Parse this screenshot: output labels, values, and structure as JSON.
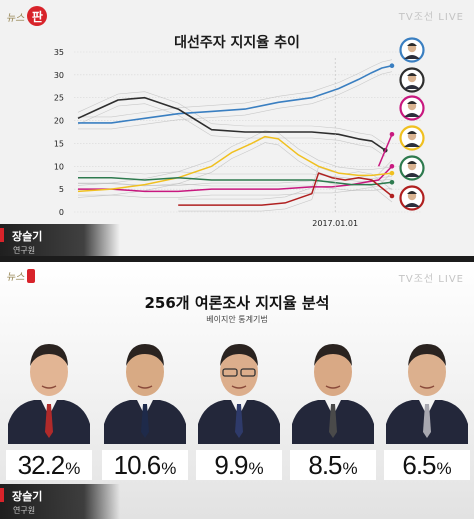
{
  "top": {
    "logo_text": "뉴스",
    "logo_badge": "판",
    "watermark": "TV조선 LIVE",
    "presenter": {
      "name": "장슬기",
      "role": "연구원"
    }
  },
  "bottom": {
    "logo_text": "뉴스",
    "watermark": "TV조선 LIVE",
    "presenter": {
      "name": "장슬기",
      "role": "연구원"
    }
  },
  "colors": {
    "moon": "#3a7fc1",
    "ahn_hee": "#2e2e2e",
    "lee_jm": "#c8187f",
    "ahn_cs": "#f0c020",
    "hwang": "#2e7a4e",
    "yu": "#b02020",
    "band": "#b8b8b8"
  },
  "chart_data": [
    {
      "type": "line",
      "title": "대선주자 지지율 추이",
      "x_tick_label": "2017.01.01",
      "ylim": [
        0,
        35
      ],
      "yticks": [
        0,
        5,
        10,
        15,
        20,
        25,
        30,
        35
      ],
      "grid": true,
      "x_range": [
        0,
        100
      ],
      "x_tick_value": 77,
      "series": [
        {
          "key": "moon",
          "x": [
            0,
            10,
            20,
            30,
            40,
            50,
            60,
            70,
            78,
            84,
            88,
            91,
            94
          ],
          "y": [
            19.5,
            19.5,
            20.5,
            21.5,
            22,
            22.5,
            24,
            25,
            27,
            29,
            30.5,
            31.5,
            32
          ]
        },
        {
          "key": "ahn_hee",
          "x": [
            0,
            6,
            12,
            20,
            30,
            40,
            50,
            60,
            70,
            78,
            84,
            88,
            92
          ],
          "y": [
            20.5,
            22.5,
            24.5,
            25,
            22.5,
            18,
            17.5,
            17.5,
            17.5,
            17,
            16,
            15.5,
            13.5
          ]
        },
        {
          "key": "lee_jm",
          "x": [
            0,
            10,
            20,
            30,
            40,
            50,
            60,
            70,
            76,
            82,
            86,
            90,
            94
          ],
          "y": [
            5,
            5,
            4.5,
            4.5,
            5,
            5,
            5,
            5.5,
            5.5,
            6,
            6.5,
            7,
            10
          ]
        },
        {
          "key": "lee_jm_rise",
          "x": [
            90,
            94
          ],
          "y": [
            10,
            17
          ]
        },
        {
          "key": "ahn_cs",
          "x": [
            0,
            10,
            20,
            30,
            40,
            46,
            52,
            56,
            60,
            66,
            72,
            78,
            84,
            88,
            94
          ],
          "y": [
            4.5,
            5,
            6,
            7.5,
            10,
            13,
            15,
            16.5,
            16,
            12.5,
            10,
            8.5,
            8,
            8,
            8.5
          ]
        },
        {
          "key": "hwang",
          "x": [
            0,
            10,
            20,
            30,
            40,
            50,
            60,
            70,
            76,
            82,
            88,
            94
          ],
          "y": [
            7.5,
            7.5,
            7,
            7.5,
            7,
            7,
            7,
            7,
            6.5,
            6,
            6,
            6.5
          ]
        },
        {
          "key": "yu",
          "x": [
            30,
            45,
            55,
            62,
            70,
            72,
            76,
            80,
            84,
            88,
            94
          ],
          "y": [
            1.5,
            1.5,
            1.5,
            2,
            4,
            8.5,
            7.5,
            7,
            7.5,
            7,
            3.5
          ]
        }
      ]
    },
    {
      "type": "bar",
      "title": "256개 여론조사 지지율 분석",
      "subtitle": "베이지안 통계기법",
      "values": [
        32.2,
        10.6,
        9.9,
        8.5,
        6.5
      ],
      "value_labels": [
        "32.2",
        "10.6",
        "9.9",
        "8.5",
        "6.5"
      ],
      "unit": "%",
      "tie_colors": [
        "#b02a2a",
        "#1e2a4a",
        "#2e3a6a",
        "#4a4a4a",
        "#a8a8b0"
      ]
    }
  ]
}
